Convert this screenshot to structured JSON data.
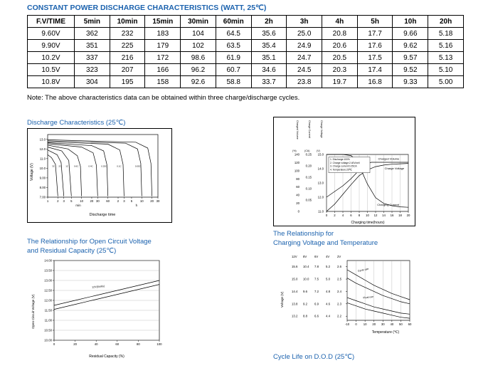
{
  "page": {
    "title": "CONSTANT POWER DISCHARGE CHARACTERISTICS (WATT, 25℃)",
    "note": "Note: The above characteristics data can be obtained within three charge/discharge cycles.",
    "accent_color": "#1b62ae"
  },
  "table": {
    "headers": [
      "F.V/TIME",
      "5min",
      "10min",
      "15min",
      "30min",
      "60min",
      "2h",
      "3h",
      "4h",
      "5h",
      "10h",
      "20h"
    ],
    "rows": [
      [
        "9.60V",
        "362",
        "232",
        "183",
        "104",
        "64.5",
        "35.6",
        "25.0",
        "20.8",
        "17.7",
        "9.66",
        "5.18"
      ],
      [
        "9.90V",
        "351",
        "225",
        "179",
        "102",
        "63.5",
        "35.4",
        "24.9",
        "20.6",
        "17.6",
        "9.62",
        "5.16"
      ],
      [
        "10.2V",
        "337",
        "216",
        "172",
        "98.6",
        "61.9",
        "35.1",
        "24.7",
        "20.5",
        "17.5",
        "9.57",
        "5.13"
      ],
      [
        "10.5V",
        "323",
        "207",
        "166",
        "96.2",
        "60.7",
        "34.6",
        "24.5",
        "20.3",
        "17.4",
        "9.52",
        "5.10"
      ],
      [
        "10.8V",
        "304",
        "195",
        "158",
        "92.6",
        "58.8",
        "33.7",
        "23.8",
        "19.7",
        "16.8",
        "9.33",
        "5.00"
      ]
    ]
  },
  "chart_titles": {
    "discharge": "Discharge Characteristics (25℃)",
    "ocv_line1": "The Relationship for Open Circuit Voltage",
    "ocv_line2": "and Residual Capacity (25℃)",
    "charging_line1": "The Relationship for",
    "charging_line2": "Charging Voltage and Temperature",
    "cycle_life": "Cycle Life on D.O.D (25℃)"
  },
  "chart_data": [
    {
      "type": "line",
      "title": "Discharge Characteristics (25℃)",
      "xlabel": "Discharge time",
      "ylabel": "Voltage (V)",
      "xscale": "log",
      "xlim": [
        1,
        1800
      ],
      "ylim": [
        7,
        13.5
      ],
      "yticks": [
        {
          "v": 13,
          "l": "13.0"
        },
        {
          "v": 12,
          "l": "12.0"
        },
        {
          "v": 11,
          "l": "11.0"
        },
        {
          "v": 10,
          "l": "10.0"
        },
        {
          "v": 9,
          "l": "9.00"
        },
        {
          "v": 8,
          "l": "8.00"
        },
        {
          "v": 7,
          "l": "7.00"
        }
      ],
      "xticks": [
        {
          "v": 1,
          "l": "1"
        },
        {
          "v": 2,
          "l": "2"
        },
        {
          "v": 3,
          "l": "3"
        },
        {
          "v": 5,
          "l": "5"
        },
        {
          "v": 10,
          "l": "10"
        },
        {
          "v": 20,
          "l": "20"
        },
        {
          "v": 30,
          "l": "30"
        },
        {
          "v": 60,
          "l": "60"
        },
        {
          "v": 120,
          "l": "2"
        },
        {
          "v": 180,
          "l": "3"
        },
        {
          "v": 300,
          "l": "5"
        },
        {
          "v": 600,
          "l": "10"
        },
        {
          "v": 1200,
          "l": "20"
        },
        {
          "v": 1800,
          "l": "30"
        }
      ],
      "xunits": [
        {
          "v": 8,
          "l": "min"
        },
        {
          "v": 420,
          "l": "h"
        }
      ],
      "series": [
        {
          "x": [
            1,
            1.3,
            1.7,
            2
          ],
          "y": [
            11.4,
            11.1,
            10.4,
            7.1
          ]
        },
        {
          "x": [
            1,
            1.9,
            2.5,
            3
          ],
          "y": [
            11.9,
            11.4,
            10.6,
            7.1
          ]
        },
        {
          "x": [
            1,
            2.6,
            4.2,
            5
          ],
          "y": [
            12.2,
            11.8,
            10.8,
            7.1
          ]
        },
        {
          "x": [
            1,
            4,
            7.5,
            9.3,
            10
          ],
          "y": [
            12.4,
            12.0,
            11.3,
            10.2,
            7.1
          ]
        },
        {
          "x": [
            1,
            10,
            22,
            27.5,
            30
          ],
          "y": [
            12.55,
            12.2,
            11.6,
            10.3,
            7.1
          ]
        },
        {
          "x": [
            1,
            20,
            45,
            56,
            60
          ],
          "y": [
            12.65,
            12.35,
            11.8,
            10.4,
            7.1
          ]
        },
        {
          "x": [
            1,
            60,
            135,
            168,
            180
          ],
          "y": [
            12.75,
            12.5,
            11.9,
            10.4,
            7.1
          ]
        },
        {
          "x": [
            1,
            200,
            450,
            560,
            600
          ],
          "y": [
            12.85,
            12.6,
            12.0,
            10.5,
            7.1
          ]
        },
        {
          "x": [
            1,
            400,
            900,
            1120,
            1200
          ],
          "y": [
            12.95,
            12.7,
            12.1,
            10.5,
            7.1
          ]
        }
      ],
      "annotations": [
        {
          "x": 1.35,
          "y": 10.15,
          "text": "3C",
          "fs": 3
        },
        {
          "x": 2.1,
          "y": 10.15,
          "text": "2C",
          "fs": 3
        },
        {
          "x": 3.4,
          "y": 10.15,
          "text": "1C",
          "fs": 3
        },
        {
          "x": 6,
          "y": 10.15,
          "text": "0.6C",
          "fs": 3
        },
        {
          "x": 16,
          "y": 10.15,
          "text": "0.4C",
          "fs": 3
        },
        {
          "x": 38,
          "y": 10.15,
          "text": "0.25C",
          "fs": 3
        },
        {
          "x": 110,
          "y": 10.15,
          "text": "0.1C",
          "fs": 3
        },
        {
          "x": 380,
          "y": 10.15,
          "text": "0.05C",
          "fs": 3
        }
      ]
    },
    {
      "type": "line",
      "title": "",
      "xlabel": "Charging time(hours)",
      "xlim": [
        0,
        20
      ],
      "ylim": [
        0,
        140
      ],
      "grid_x": true,
      "xticks": [
        {
          "v": 0,
          "l": "0"
        },
        {
          "v": 2,
          "l": "2"
        },
        {
          "v": 4,
          "l": "4"
        },
        {
          "v": 6,
          "l": "6"
        },
        {
          "v": 8,
          "l": "8"
        },
        {
          "v": 10,
          "l": "10"
        },
        {
          "v": 12,
          "l": "12"
        },
        {
          "v": 14,
          "l": "14"
        },
        {
          "v": 16,
          "l": "16"
        },
        {
          "v": 18,
          "l": "18"
        },
        {
          "v": 20,
          "l": "20"
        }
      ],
      "yaxes": [
        {
          "name": "Charge Voltage",
          "unit": "(V)",
          "ylim": [
            11,
            15
          ],
          "ticks": [
            {
              "v": 15,
              "l": "15.0"
            },
            {
              "v": 14,
              "l": "14.0"
            },
            {
              "v": 13,
              "l": "13.0"
            },
            {
              "v": 12,
              "l": "12.0"
            },
            {
              "v": 11,
              "l": "11.0"
            }
          ]
        },
        {
          "name": "Charge Current",
          "unit": "(CA)",
          "ylim": [
            0,
            0.25
          ],
          "ticks": [
            {
              "v": 0.25,
              "l": "0.25"
            },
            {
              "v": 0.2,
              "l": "0.20"
            },
            {
              "v": 0.15,
              "l": "0.15"
            },
            {
              "v": 0.1,
              "l": "0.10"
            },
            {
              "v": 0.05,
              "l": "0.05"
            }
          ]
        },
        {
          "name": "Charged Volume",
          "unit": "(%)",
          "ylim": [
            0,
            140
          ],
          "ticks": [
            {
              "v": 140,
              "l": "140"
            },
            {
              "v": 120,
              "l": "120"
            },
            {
              "v": 100,
              "l": "100"
            },
            {
              "v": 80,
              "l": "80"
            },
            {
              "v": 60,
              "l": "60"
            },
            {
              "v": 40,
              "l": "40"
            },
            {
              "v": 20,
              "l": "20"
            },
            {
              "v": 0,
              "l": "0"
            }
          ]
        }
      ],
      "series": [
        {
          "name": "Charged Volume",
          "ylim": [
            0,
            140
          ],
          "x": [
            0,
            2,
            4,
            6,
            8,
            10,
            12,
            14,
            16,
            18,
            20
          ],
          "y": [
            0,
            18,
            42,
            66,
            88,
            102,
            110,
            114,
            116,
            117,
            118
          ]
        },
        {
          "name": "Charge Voltage",
          "ylim": [
            11,
            15
          ],
          "x": [
            0,
            2,
            4,
            6,
            8,
            9,
            10,
            11,
            12,
            14,
            16,
            18,
            20
          ],
          "y": [
            12.0,
            12.4,
            12.8,
            13.3,
            13.9,
            14.2,
            14.4,
            14.45,
            14.45,
            14.45,
            14.45,
            14.45,
            14.45
          ]
        },
        {
          "name": "Charging Current",
          "ylim": [
            0,
            0.25
          ],
          "x": [
            0,
            2,
            4,
            6,
            7,
            8,
            9,
            10,
            12,
            14,
            16,
            18,
            20
          ],
          "y": [
            0.25,
            0.25,
            0.25,
            0.245,
            0.23,
            0.2,
            0.16,
            0.12,
            0.06,
            0.035,
            0.025,
            0.02,
            0.018
          ]
        }
      ],
      "annotations": [
        {
          "x": 12.6,
          "y": 127,
          "text": "Charged Volume",
          "fs": 4
        },
        {
          "x": 14.2,
          "y": 103,
          "text": "Charge Voltage",
          "fs": 4
        },
        {
          "x": 12.4,
          "y": 14,
          "text": "Charging Current",
          "fs": 4
        }
      ],
      "legend": {
        "x": 5,
        "y": 8,
        "w": 58,
        "lines": [
          "1. Discharge:100%",
          "2. Charge voltage:2.40V/cell",
          "3. Charge current:0.25CA",
          "4. Temperature:25℃"
        ]
      }
    },
    {
      "type": "line",
      "title": "The Relationship for Open Circuit Voltage and Residual Capacity (25℃)",
      "xlabel": "Residual Capacity (%)",
      "ylabel": "Open Circuit Voltage (V)",
      "xlim": [
        0,
        100
      ],
      "ylim": [
        10,
        14
      ],
      "grid_y": true,
      "xticks": [
        {
          "v": 0,
          "l": "0"
        },
        {
          "v": 20,
          "l": "20"
        },
        {
          "v": 40,
          "l": "40"
        },
        {
          "v": 60,
          "l": "60"
        },
        {
          "v": 80,
          "l": "80"
        },
        {
          "v": 100,
          "l": "100"
        }
      ],
      "yticks": [
        {
          "v": 14,
          "l": "14.00"
        },
        {
          "v": 13.5,
          "l": "13.50"
        },
        {
          "v": 13,
          "l": "13.00"
        },
        {
          "v": 12.5,
          "l": "12.50"
        },
        {
          "v": 12,
          "l": "12.00"
        },
        {
          "v": 11.5,
          "l": "11.50"
        },
        {
          "v": 11,
          "l": "11.00"
        },
        {
          "v": 10.5,
          "l": "10.50"
        },
        {
          "v": 10,
          "l": "10.00"
        }
      ],
      "series": [
        {
          "x": [
            0,
            20,
            40,
            60,
            80,
            100
          ],
          "y": [
            11.75,
            12.0,
            12.25,
            12.5,
            12.75,
            13.0
          ]
        },
        {
          "x": [
            0,
            20,
            40,
            60,
            80,
            100
          ],
          "y": [
            11.55,
            11.8,
            12.05,
            12.3,
            12.55,
            12.8
          ]
        }
      ],
      "annotations": [
        {
          "x": 36,
          "y": 12.62,
          "text": "12V(6cells)",
          "rot": -5,
          "fs": 3.6
        }
      ]
    },
    {
      "type": "line",
      "title": "The Relationship for Charging Voltage and Temperature",
      "xlabel": "Temperature (℃)",
      "ylabel": "Voltage (V)",
      "xlim": [
        -10,
        60
      ],
      "ylim": [
        13.0,
        15.9
      ],
      "grid_x": true,
      "scale_headers": [
        "12V",
        "8V",
        "6V",
        "4V",
        "2V"
      ],
      "xticks": [
        {
          "v": -10,
          "l": "-10"
        },
        {
          "v": 0,
          "l": "0"
        },
        {
          "v": 10,
          "l": "10"
        },
        {
          "v": 20,
          "l": "20"
        },
        {
          "v": 30,
          "l": "30"
        },
        {
          "v": 40,
          "l": "40"
        },
        {
          "v": 50,
          "l": "50"
        },
        {
          "v": 60,
          "l": "60"
        }
      ],
      "yticks": [
        {
          "v": 15.6,
          "labels": [
            "15.6",
            "10.4",
            "7.8",
            "5.2",
            "2.6"
          ]
        },
        {
          "v": 15.0,
          "labels": [
            "15.0",
            "10.0",
            "7.5",
            "5.0",
            "2.5"
          ]
        },
        {
          "v": 14.4,
          "labels": [
            "14.4",
            "9.6",
            "7.2",
            "4.8",
            "2.4"
          ]
        },
        {
          "v": 13.8,
          "labels": [
            "13.8",
            "9.2",
            "6.9",
            "4.6",
            "2.3"
          ]
        },
        {
          "v": 13.2,
          "labels": [
            "13.2",
            "8.8",
            "6.6",
            "4.4",
            "2.2"
          ]
        }
      ],
      "series": [
        {
          "x": [
            -10,
            0,
            10,
            20,
            30,
            40,
            50,
            60
          ],
          "y": [
            15.45,
            15.2,
            14.95,
            14.7,
            14.5,
            14.3,
            14.15,
            14.0
          ]
        },
        {
          "x": [
            -10,
            0,
            10,
            20,
            30,
            40,
            50,
            60
          ],
          "y": [
            15.05,
            14.8,
            14.6,
            14.4,
            14.2,
            14.05,
            13.9,
            13.8
          ]
        },
        {
          "x": [
            -10,
            0,
            10,
            20,
            30,
            40,
            50,
            60
          ],
          "y": [
            14.1,
            13.95,
            13.8,
            13.65,
            13.55,
            13.45,
            13.35,
            13.3
          ]
        },
        {
          "x": [
            -10,
            0,
            10,
            20,
            30,
            40,
            50,
            60
          ],
          "y": [
            13.85,
            13.7,
            13.55,
            13.45,
            13.35,
            13.25,
            13.15,
            13.1
          ]
        }
      ],
      "annotations": [
        {
          "x": 2,
          "y": 15.35,
          "text": "Cycle use",
          "rot": -12,
          "fs": 3.6
        },
        {
          "x": 8,
          "y": 14.05,
          "text": "Float use",
          "rot": -7,
          "fs": 3.6
        }
      ]
    }
  ]
}
